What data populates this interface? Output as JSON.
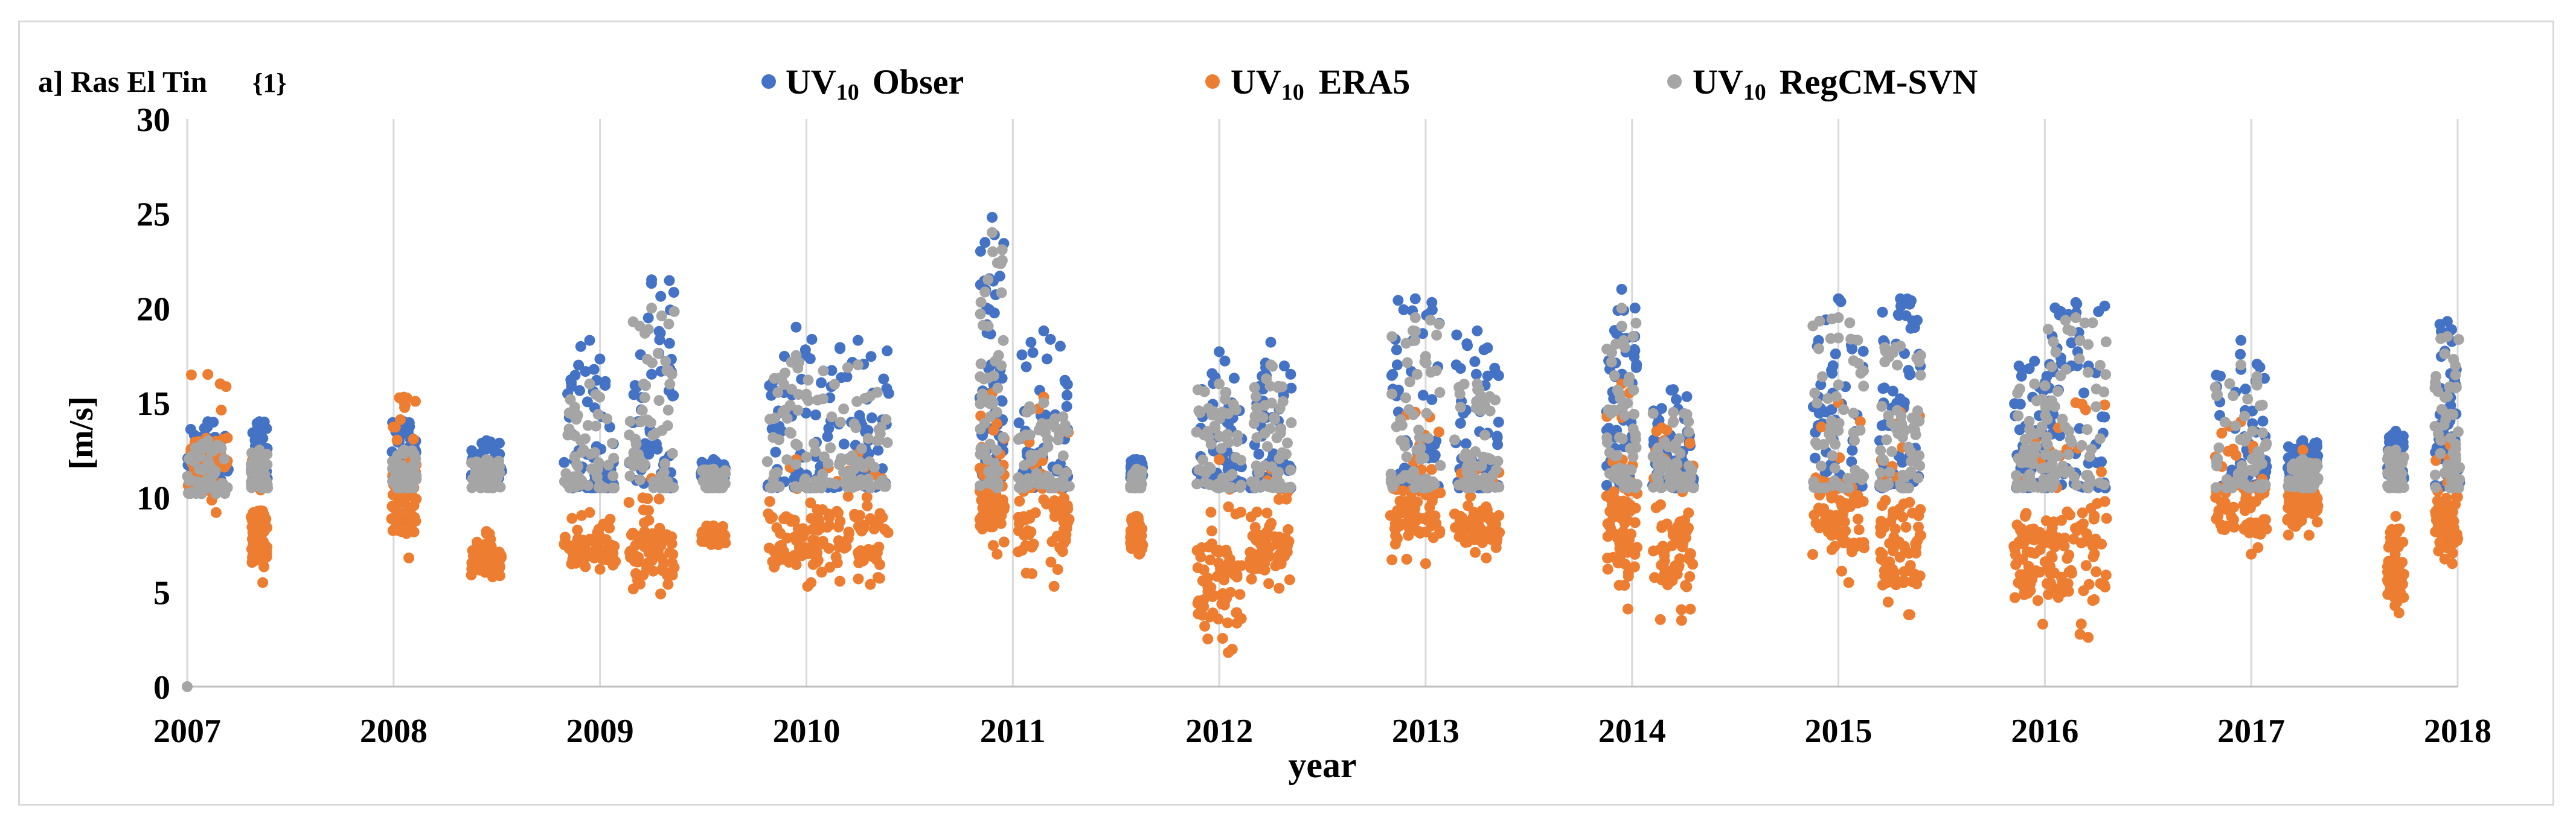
{
  "chart_data": {
    "type": "scatter",
    "panel_label": "a] Ras El Tin",
    "station_tag": "{1}",
    "legend": [
      {
        "name": "UV10 Obser",
        "base": "UV",
        "sub": "10",
        "suffix": "Obser",
        "color": "#4472c4"
      },
      {
        "name": "UV10 ERA5",
        "base": "UV",
        "sub": "10",
        "suffix": "ERA5",
        "color": "#ed7d31"
      },
      {
        "name": "UV10 RegCM-SVN",
        "base": "UV",
        "sub": "10",
        "suffix": "RegCM-SVN",
        "color": "#a5a5a5"
      }
    ],
    "xlabel": "year",
    "ylabel": "[m/s]",
    "xlim": [
      2007,
      2018
    ],
    "ylim": [
      0,
      30
    ],
    "x_ticks": [
      "2007",
      "2008",
      "2009",
      "2010",
      "2011",
      "2012",
      "2013",
      "2014",
      "2015",
      "2016",
      "2017",
      "2018"
    ],
    "y_ticks": [
      "0",
      "5",
      "10",
      "15",
      "20",
      "25",
      "30"
    ],
    "grid": "vertical",
    "clusters": [
      {
        "x": 2007.1,
        "w": 0.2,
        "obs": [
          10.5,
          14
        ],
        "era": [
          9.2,
          16.5
        ],
        "reg": [
          10.2,
          13
        ]
      },
      {
        "x": 2007.35,
        "w": 0.08,
        "obs": [
          11,
          14
        ],
        "era": [
          5.5,
          12.5
        ],
        "reg": [
          10.5,
          12.5
        ]
      },
      {
        "x": 2008.05,
        "w": 0.12,
        "obs": [
          11,
          14
        ],
        "era": [
          6.8,
          15.3
        ],
        "reg": [
          10.5,
          12.5
        ]
      },
      {
        "x": 2008.45,
        "w": 0.15,
        "obs": [
          11,
          13
        ],
        "era": [
          5.8,
          8.2
        ],
        "reg": [
          10.5,
          12
        ]
      },
      {
        "x": 2008.95,
        "w": 0.25,
        "obs": [
          10.5,
          18.3
        ],
        "era": [
          6.2,
          9.2
        ],
        "reg": [
          10.5,
          16
        ]
      },
      {
        "x": 2009.25,
        "w": 0.22,
        "obs": [
          10.5,
          21.5
        ],
        "era": [
          4.9,
          11
        ],
        "reg": [
          10.5,
          20
        ]
      },
      {
        "x": 2009.55,
        "w": 0.12,
        "obs": [
          11,
          12
        ],
        "era": [
          7.5,
          8.5
        ],
        "reg": [
          10.5,
          11.5
        ]
      },
      {
        "x": 2009.95,
        "w": 0.28,
        "obs": [
          10.5,
          19
        ],
        "era": [
          5.3,
          12
        ],
        "reg": [
          10.5,
          17.5
        ]
      },
      {
        "x": 2010.25,
        "w": 0.3,
        "obs": [
          10.5,
          18.3
        ],
        "era": [
          5.4,
          12.3
        ],
        "reg": [
          10.5,
          17
        ]
      },
      {
        "x": 2010.9,
        "w": 0.12,
        "obs": [
          11,
          24.8
        ],
        "era": [
          7,
          15.5
        ],
        "reg": [
          10.5,
          24
        ]
      },
      {
        "x": 2011.15,
        "w": 0.25,
        "obs": [
          10.5,
          18.8
        ],
        "era": [
          5.3,
          15.3
        ],
        "reg": [
          10.5,
          15
        ]
      },
      {
        "x": 2011.6,
        "w": 0.06,
        "obs": [
          11,
          12
        ],
        "era": [
          7,
          9
        ],
        "reg": [
          10.5,
          11.5
        ]
      },
      {
        "x": 2012.0,
        "w": 0.22,
        "obs": [
          10.5,
          17.7
        ],
        "era": [
          1.8,
          12
        ],
        "reg": [
          10.5,
          16
        ]
      },
      {
        "x": 2012.25,
        "w": 0.2,
        "obs": [
          10.5,
          18.2
        ],
        "era": [
          5.2,
          11.5
        ],
        "reg": [
          10.5,
          17
        ]
      },
      {
        "x": 2012.95,
        "w": 0.25,
        "obs": [
          10.5,
          20.5
        ],
        "era": [
          6.5,
          14.5
        ],
        "reg": [
          10.5,
          19.5
        ]
      },
      {
        "x": 2013.25,
        "w": 0.22,
        "obs": [
          10.5,
          18.8
        ],
        "era": [
          6.8,
          11.5
        ],
        "reg": [
          10.5,
          16
        ]
      },
      {
        "x": 2013.95,
        "w": 0.15,
        "obs": [
          10.5,
          21
        ],
        "era": [
          4.1,
          16
        ],
        "reg": [
          10.5,
          20
        ]
      },
      {
        "x": 2014.2,
        "w": 0.2,
        "obs": [
          10.5,
          15.7
        ],
        "era": [
          3.5,
          14
        ],
        "reg": [
          10.5,
          14.5
        ]
      },
      {
        "x": 2015.0,
        "w": 0.25,
        "obs": [
          10.5,
          20.5
        ],
        "era": [
          5.5,
          15
        ],
        "reg": [
          10.5,
          19.5
        ]
      },
      {
        "x": 2015.3,
        "w": 0.2,
        "obs": [
          10.5,
          20.5
        ],
        "era": [
          3.8,
          14.5
        ],
        "reg": [
          10.5,
          18
        ]
      },
      {
        "x": 2015.95,
        "w": 0.2,
        "obs": [
          10.5,
          17.2
        ],
        "era": [
          3.3,
          13
        ],
        "reg": [
          10.5,
          16
        ]
      },
      {
        "x": 2016.15,
        "w": 0.3,
        "obs": [
          10.5,
          20.3
        ],
        "era": [
          2.6,
          15
        ],
        "reg": [
          10.5,
          19.5
        ]
      },
      {
        "x": 2016.95,
        "w": 0.25,
        "obs": [
          10.5,
          18.3
        ],
        "era": [
          7,
          14
        ],
        "reg": [
          10.5,
          17
        ]
      },
      {
        "x": 2017.25,
        "w": 0.15,
        "obs": [
          11,
          13
        ],
        "era": [
          8,
          12.5
        ],
        "reg": [
          10.5,
          12
        ]
      },
      {
        "x": 2017.7,
        "w": 0.08,
        "obs": [
          11,
          13.5
        ],
        "era": [
          3.9,
          9
        ],
        "reg": [
          10.5,
          12.5
        ]
      },
      {
        "x": 2017.95,
        "w": 0.12,
        "obs": [
          10.5,
          19.3
        ],
        "era": [
          6.5,
          13
        ],
        "reg": [
          10.5,
          18.5
        ]
      }
    ],
    "special_points": [
      {
        "series": "reg",
        "x": 2007.0,
        "y": 0
      }
    ]
  }
}
